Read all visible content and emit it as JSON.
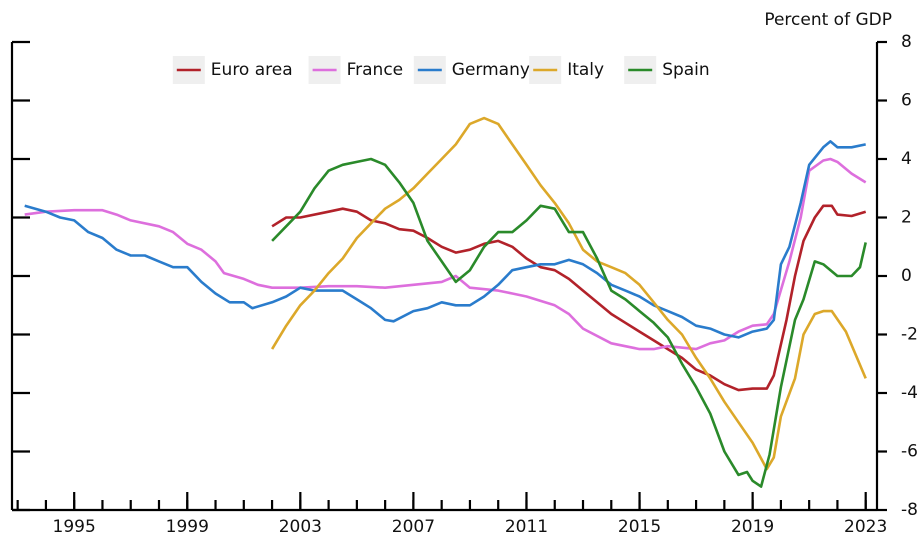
{
  "chart_data": {
    "type": "line",
    "ylabel": "Percent of GDP",
    "xlim": [
      1992.8,
      2023.4
    ],
    "ylim": [
      -8,
      8
    ],
    "xticks": [
      1995,
      1999,
      2003,
      2007,
      2011,
      2015,
      2019,
      2023
    ],
    "xminorticks": [
      1993,
      1994,
      1995,
      1996,
      1997,
      1998,
      1999,
      2000,
      2001,
      2002,
      2003,
      2004,
      2005,
      2006,
      2007,
      2008,
      2009,
      2010,
      2011,
      2012,
      2013,
      2014,
      2015,
      2016,
      2017,
      2018,
      2019,
      2020,
      2021,
      2022,
      2023
    ],
    "yticks": [
      -8,
      -6,
      -4,
      -2,
      0,
      2,
      4,
      6,
      8
    ],
    "series": [
      {
        "name": "Euro area",
        "color": "#b2222a",
        "x": [
          2002,
          2002.5,
          2003,
          2004,
          2004.5,
          2005,
          2005.5,
          2006,
          2006.5,
          2007,
          2007.5,
          2008,
          2008.5,
          2009,
          2009.5,
          2010,
          2010.5,
          2011,
          2011.5,
          2012,
          2012.5,
          2013,
          2013.5,
          2014,
          2014.5,
          2015,
          2015.5,
          2016,
          2016.5,
          2017,
          2017.5,
          2018,
          2018.5,
          2019,
          2019.5,
          2019.75,
          2020.2,
          2020.5,
          2020.8,
          2021.2,
          2021.5,
          2021.8,
          2022,
          2022.5,
          2023
        ],
        "values": [
          1.7,
          2.0,
          2.0,
          2.2,
          2.3,
          2.2,
          1.9,
          1.8,
          1.6,
          1.55,
          1.3,
          1.0,
          0.8,
          0.9,
          1.1,
          1.2,
          1.0,
          0.6,
          0.3,
          0.2,
          -0.1,
          -0.5,
          -0.9,
          -1.3,
          -1.6,
          -1.9,
          -2.2,
          -2.5,
          -2.8,
          -3.2,
          -3.4,
          -3.7,
          -3.9,
          -3.85,
          -3.85,
          -3.4,
          -1.5,
          0,
          1.2,
          2.0,
          2.4,
          2.4,
          2.1,
          2.05,
          2.2
        ]
      },
      {
        "name": "France",
        "color": "#dd6fdd",
        "x": [
          1993.25,
          1994,
          1995,
          1996,
          1996.5,
          1997,
          1998,
          1998.5,
          1999,
          1999.5,
          2000,
          2000.3,
          2001,
          2001.5,
          2002,
          2003,
          2004,
          2005,
          2006,
          2007,
          2008,
          2008.5,
          2009,
          2010,
          2010.5,
          2011,
          2012,
          2012.5,
          2013,
          2014,
          2015,
          2015.5,
          2016,
          2017,
          2017.5,
          2018,
          2018.5,
          2019,
          2019.5,
          2019.75,
          2020.3,
          2020.7,
          2021,
          2021.5,
          2021.75,
          2022,
          2022.5,
          2023
        ],
        "values": [
          2.1,
          2.2,
          2.25,
          2.25,
          2.1,
          1.9,
          1.7,
          1.5,
          1.1,
          0.9,
          0.5,
          0.1,
          -0.1,
          -0.3,
          -0.4,
          -0.4,
          -0.35,
          -0.35,
          -0.4,
          -0.3,
          -0.2,
          0.0,
          -0.4,
          -0.5,
          -0.6,
          -0.7,
          -1.0,
          -1.3,
          -1.8,
          -2.3,
          -2.5,
          -2.5,
          -2.4,
          -2.5,
          -2.3,
          -2.2,
          -1.9,
          -1.7,
          -1.65,
          -1.3,
          0.5,
          2.0,
          3.6,
          3.95,
          4.0,
          3.9,
          3.5,
          3.2
        ]
      },
      {
        "name": "Germany",
        "color": "#2a7ccc",
        "x": [
          1993.25,
          1994,
          1994.5,
          1995,
          1995.5,
          1996,
          1996.5,
          1997,
          1997.5,
          1998,
          1998.5,
          1999,
          1999.5,
          2000,
          2000.5,
          2001,
          2001.3,
          2002,
          2002.5,
          2003,
          2003.5,
          2004,
          2004.5,
          2005,
          2005.5,
          2006,
          2006.3,
          2007,
          2007.5,
          2008,
          2008.5,
          2009,
          2009.5,
          2010,
          2010.5,
          2011,
          2011.5,
          2012,
          2012.5,
          2013,
          2013.5,
          2014,
          2014.5,
          2015,
          2015.5,
          2016,
          2016.5,
          2017,
          2017.5,
          2018,
          2018.5,
          2019,
          2019.5,
          2019.75,
          2020,
          2020.3,
          2020.7,
          2021,
          2021.5,
          2021.75,
          2022,
          2022.5,
          2023
        ],
        "values": [
          2.4,
          2.2,
          2.0,
          1.9,
          1.5,
          1.3,
          0.9,
          0.7,
          0.7,
          0.5,
          0.3,
          0.3,
          -0.2,
          -0.6,
          -0.9,
          -0.9,
          -1.1,
          -0.9,
          -0.7,
          -0.4,
          -0.5,
          -0.5,
          -0.5,
          -0.8,
          -1.1,
          -1.5,
          -1.55,
          -1.2,
          -1.1,
          -0.9,
          -1.0,
          -1.0,
          -0.7,
          -0.3,
          0.2,
          0.3,
          0.4,
          0.4,
          0.55,
          0.4,
          0.1,
          -0.3,
          -0.5,
          -0.7,
          -1.0,
          -1.2,
          -1.4,
          -1.7,
          -1.8,
          -2.0,
          -2.1,
          -1.9,
          -1.8,
          -1.5,
          0.4,
          1.0,
          2.5,
          3.8,
          4.4,
          4.6,
          4.4,
          4.4,
          4.5
        ]
      },
      {
        "name": "Italy",
        "color": "#dca82a",
        "x": [
          2002,
          2002.5,
          2003,
          2003.5,
          2004,
          2004.5,
          2005,
          2005.5,
          2006,
          2006.5,
          2007,
          2007.5,
          2008,
          2008.5,
          2009,
          2009.5,
          2010,
          2010.5,
          2011,
          2011.5,
          2012,
          2012.5,
          2013,
          2013.5,
          2014,
          2014.5,
          2015,
          2015.5,
          2016,
          2016.5,
          2017,
          2017.5,
          2018,
          2018.5,
          2019,
          2019.5,
          2019.75,
          2020,
          2020.5,
          2020.8,
          2021.2,
          2021.5,
          2021.8,
          2022.3,
          2023
        ],
        "values": [
          -2.5,
          -1.7,
          -1.0,
          -0.5,
          0.1,
          0.6,
          1.3,
          1.8,
          2.3,
          2.6,
          3.0,
          3.5,
          4.0,
          4.5,
          5.2,
          5.4,
          5.2,
          4.5,
          3.8,
          3.1,
          2.5,
          1.8,
          0.9,
          0.5,
          0.3,
          0.1,
          -0.3,
          -0.9,
          -1.5,
          -2.0,
          -2.8,
          -3.5,
          -4.3,
          -5.0,
          -5.7,
          -6.6,
          -6.2,
          -4.8,
          -3.5,
          -2.0,
          -1.3,
          -1.2,
          -1.2,
          -1.9,
          -3.5
        ]
      },
      {
        "name": "Spain",
        "color": "#2a8a2a",
        "x": [
          2002,
          2002.5,
          2003,
          2003.5,
          2004,
          2004.5,
          2005,
          2005.5,
          2006,
          2006.5,
          2007,
          2007.5,
          2008,
          2008.5,
          2009,
          2009.5,
          2010,
          2010.5,
          2011,
          2011.5,
          2012,
          2012.5,
          2013,
          2013.5,
          2014,
          2014.5,
          2015,
          2015.5,
          2016,
          2016.5,
          2017,
          2017.5,
          2018,
          2018.5,
          2018.8,
          2019,
          2019.3,
          2019.6,
          2020,
          2020.5,
          2020.8,
          2021.2,
          2021.5,
          2022,
          2022.5,
          2022.8,
          2023
        ],
        "values": [
          1.2,
          1.7,
          2.2,
          3.0,
          3.6,
          3.8,
          3.9,
          4.0,
          3.8,
          3.2,
          2.5,
          1.2,
          0.5,
          -0.2,
          0.2,
          1.0,
          1.5,
          1.5,
          1.9,
          2.4,
          2.3,
          1.5,
          1.5,
          0.6,
          -0.5,
          -0.8,
          -1.2,
          -1.6,
          -2.1,
          -3.0,
          -3.8,
          -4.7,
          -6.0,
          -6.8,
          -6.7,
          -7.0,
          -7.2,
          -6.1,
          -3.8,
          -1.5,
          -0.8,
          0.5,
          0.4,
          0.0,
          0.0,
          0.3,
          1.15
        ]
      }
    ]
  }
}
